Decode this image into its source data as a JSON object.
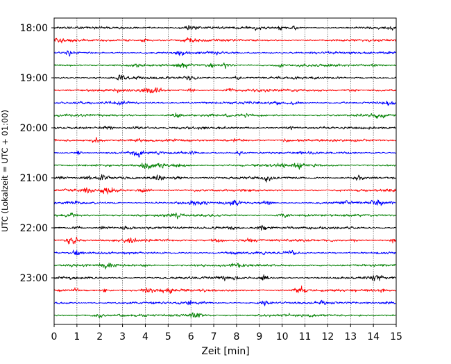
{
  "chart_data": {
    "type": "line",
    "title": "",
    "xlabel": "Zeit  [min]",
    "ylabel": "UTC (Lokalzeit = UTC + 01:00)",
    "xlim": [
      0,
      15
    ],
    "x_ticks": [
      0,
      1,
      2,
      3,
      4,
      5,
      6,
      7,
      8,
      9,
      10,
      11,
      12,
      13,
      14,
      15
    ],
    "grid": "vertical dotted",
    "trace_minutes_per_row": 15,
    "y_ticks": [
      {
        "label": "18:00",
        "row": 0
      },
      {
        "label": "19:00",
        "row": 4
      },
      {
        "label": "20:00",
        "row": 8
      },
      {
        "label": "21:00",
        "row": 12
      },
      {
        "label": "22:00",
        "row": 16
      },
      {
        "label": "23:00",
        "row": 20
      }
    ],
    "rows": [
      {
        "start": "18:00",
        "color": "#000000"
      },
      {
        "start": "18:15",
        "color": "#ff0000"
      },
      {
        "start": "18:30",
        "color": "#0000ff"
      },
      {
        "start": "18:45",
        "color": "#008000"
      },
      {
        "start": "19:00",
        "color": "#000000"
      },
      {
        "start": "19:15",
        "color": "#ff0000"
      },
      {
        "start": "19:30",
        "color": "#0000ff"
      },
      {
        "start": "19:45",
        "color": "#008000"
      },
      {
        "start": "20:00",
        "color": "#000000"
      },
      {
        "start": "20:15",
        "color": "#ff0000"
      },
      {
        "start": "20:30",
        "color": "#0000ff"
      },
      {
        "start": "20:45",
        "color": "#008000"
      },
      {
        "start": "21:00",
        "color": "#000000"
      },
      {
        "start": "21:15",
        "color": "#ff0000"
      },
      {
        "start": "21:30",
        "color": "#0000ff"
      },
      {
        "start": "21:45",
        "color": "#008000"
      },
      {
        "start": "22:00",
        "color": "#000000"
      },
      {
        "start": "22:15",
        "color": "#ff0000"
      },
      {
        "start": "22:30",
        "color": "#0000ff"
      },
      {
        "start": "22:45",
        "color": "#008000"
      },
      {
        "start": "23:00",
        "color": "#000000"
      },
      {
        "start": "23:15",
        "color": "#ff0000"
      },
      {
        "start": "23:30",
        "color": "#0000ff"
      },
      {
        "start": "23:45",
        "color": "#008000"
      }
    ]
  }
}
